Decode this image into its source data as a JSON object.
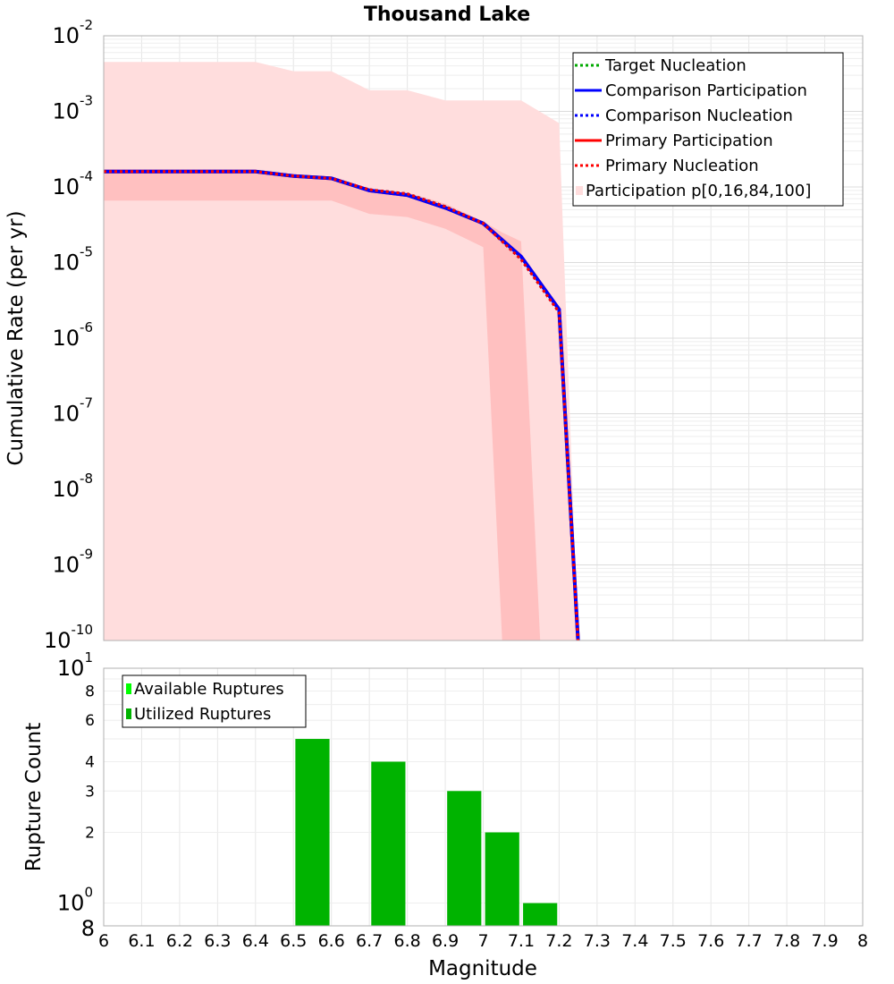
{
  "chart_data": [
    {
      "type": "line",
      "title": "Thousand Lake",
      "xlabel": "",
      "ylabel": "Cumulative Rate (per yr)",
      "yscale": "log",
      "xlim": [
        6,
        8
      ],
      "ylim": [
        1e-10,
        0.01
      ],
      "y_ticks": [
        {
          "base": "10",
          "exp": "-10"
        },
        {
          "base": "10",
          "exp": "-9"
        },
        {
          "base": "10",
          "exp": "-8"
        },
        {
          "base": "10",
          "exp": "-7"
        },
        {
          "base": "10",
          "exp": "-6"
        },
        {
          "base": "10",
          "exp": "-5"
        },
        {
          "base": "10",
          "exp": "-4"
        },
        {
          "base": "10",
          "exp": "-3"
        },
        {
          "base": "10",
          "exp": "-2"
        }
      ],
      "grid": true,
      "legend_position": "top-right",
      "series": [
        {
          "name": "Target Nucleation",
          "color": "#00aa00",
          "style": "dotted",
          "x": [
            6.0,
            6.4,
            6.5,
            6.6,
            6.7,
            6.8,
            6.9,
            7.0,
            7.1,
            7.2,
            7.25
          ],
          "y": [
            0.00016,
            0.00016,
            0.00014,
            0.00013,
            9.2e-05,
            8.1e-05,
            5.5e-05,
            3.3e-05,
            1.1e-05,
            2.2e-06,
            1e-10
          ]
        },
        {
          "name": "Comparison Participation",
          "color": "#0000ff",
          "style": "solid",
          "x": [
            6.0,
            6.4,
            6.5,
            6.6,
            6.7,
            6.8,
            6.9,
            7.0,
            7.1,
            7.2,
            7.25
          ],
          "y": [
            0.00016,
            0.00016,
            0.00014,
            0.00013,
            9e-05,
            7.8e-05,
            5.3e-05,
            3.3e-05,
            1.2e-05,
            2.4e-06,
            1e-10
          ]
        },
        {
          "name": "Comparison Nucleation",
          "color": "#0000ff",
          "style": "dotted",
          "x": [
            6.0,
            6.4,
            6.5,
            6.6,
            6.7,
            6.8,
            6.9,
            7.0,
            7.1,
            7.2,
            7.25
          ],
          "y": [
            0.00016,
            0.00016,
            0.00014,
            0.00013,
            9.2e-05,
            8.1e-05,
            5.5e-05,
            3.3e-05,
            1.1e-05,
            2.2e-06,
            1e-10
          ]
        },
        {
          "name": "Primary Participation",
          "color": "#ff0000",
          "style": "solid",
          "x": [
            6.0,
            6.4,
            6.5,
            6.6,
            6.7,
            6.8,
            6.9,
            7.0,
            7.1,
            7.2,
            7.25
          ],
          "y": [
            0.00016,
            0.00016,
            0.00014,
            0.00013,
            9e-05,
            7.8e-05,
            5.3e-05,
            3.3e-05,
            1.2e-05,
            2.4e-06,
            1e-10
          ]
        },
        {
          "name": "Primary Nucleation",
          "color": "#ff0000",
          "style": "dotted",
          "x": [
            6.0,
            6.4,
            6.5,
            6.6,
            6.7,
            6.8,
            6.9,
            7.0,
            7.1,
            7.2,
            7.25
          ],
          "y": [
            0.00016,
            0.00016,
            0.00014,
            0.00013,
            9.2e-05,
            8.1e-05,
            5.5e-05,
            3.3e-05,
            1.1e-05,
            2.2e-06,
            1e-10
          ]
        }
      ],
      "bands": [
        {
          "name": "Participation p[0,16,84,100]",
          "color": "#ffdddd",
          "x": [
            6.0,
            6.4,
            6.5,
            6.6,
            6.7,
            6.8,
            6.9,
            7.0,
            7.1,
            7.2,
            7.25
          ],
          "upper": [
            0.0045,
            0.0045,
            0.0034,
            0.0034,
            0.0019,
            0.0019,
            0.0014,
            0.0014,
            0.0014,
            0.0007,
            1e-10
          ],
          "lower": [
            1e-10,
            1e-10,
            1e-10,
            1e-10,
            1e-10,
            1e-10,
            1e-10,
            1e-10,
            1e-10,
            1e-10,
            1e-10
          ]
        },
        {
          "name": "",
          "color": "#ffc0c0",
          "x": [
            6.0,
            6.4,
            6.5,
            6.6,
            6.7,
            6.8,
            6.9,
            7.0,
            7.05,
            7.1,
            7.15
          ],
          "upper": [
            0.00016,
            0.00016,
            0.00014,
            0.00013,
            9.5e-05,
            8.5e-05,
            6e-05,
            3.5e-05,
            2.5e-05,
            1.9e-05,
            1e-10
          ],
          "lower": [
            6.6e-05,
            6.6e-05,
            6.6e-05,
            6.6e-05,
            4.4e-05,
            4e-05,
            2.8e-05,
            1.6e-05,
            1e-10,
            1e-10,
            1e-10
          ]
        }
      ]
    },
    {
      "type": "bar",
      "xlabel": "Magnitude",
      "ylabel": "Rupture Count",
      "yscale": "log",
      "xlim": [
        6,
        8
      ],
      "ylim": [
        0.8,
        10
      ],
      "x_ticks": [
        "6",
        "6.1",
        "6.2",
        "6.3",
        "6.4",
        "6.5",
        "6.6",
        "6.7",
        "6.8",
        "6.9",
        "7",
        "7.1",
        "7.2",
        "7.3",
        "7.4",
        "7.5",
        "7.6",
        "7.7",
        "7.8",
        "7.9",
        "8"
      ],
      "y_major_ticks": [
        {
          "base": "10",
          "exp": "0"
        },
        {
          "base": "10",
          "exp": "1"
        }
      ],
      "y_minor_ticks": [
        "8",
        "2",
        "3",
        "4",
        "6",
        "8"
      ],
      "grid": true,
      "legend_position": "top-left",
      "series": [
        {
          "name": "Available Ruptures",
          "color": "#00ff00",
          "x": [],
          "values": []
        },
        {
          "name": "Utilized Ruptures",
          "color": "#00b300",
          "x": [
            6.55,
            6.75,
            6.95,
            7.05,
            7.15
          ],
          "values": [
            5,
            4,
            3,
            2,
            1
          ]
        }
      ]
    }
  ]
}
